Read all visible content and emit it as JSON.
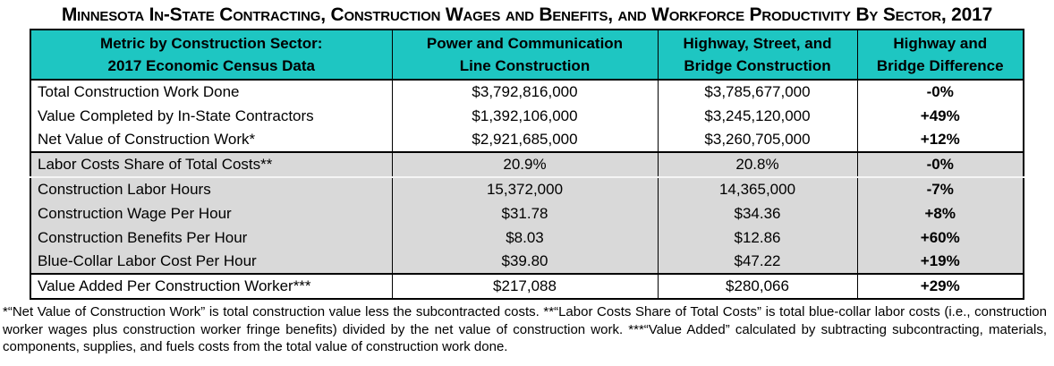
{
  "title": "Minnesota In-State Contracting, Construction Wages and Benefits, and Workforce Productivity By Sector, 2017",
  "colors": {
    "header_bg": "#1EC6C2",
    "row_shaded": "#D9D9D9",
    "border": "#000000",
    "text": "#000000",
    "thin_separator": "#F5F5F5"
  },
  "table": {
    "columns": [
      {
        "line1": "Metric by Construction Sector:",
        "line2": "2017 Economic Census Data"
      },
      {
        "line1": "Power and Communication",
        "line2": "Line Construction"
      },
      {
        "line1": "Highway, Street, and",
        "line2": "Bridge Construction"
      },
      {
        "line1": "Highway and",
        "line2": "Bridge Difference"
      }
    ],
    "rows": [
      {
        "metric": "Total Construction Work Done",
        "power_line": "$3,792,816,000",
        "highway_bridge": "$3,785,677,000",
        "difference": "-0%"
      },
      {
        "metric": "Value Completed by In-State Contractors",
        "power_line": "$1,392,106,000",
        "highway_bridge": "$3,245,120,000",
        "difference": "+49%"
      },
      {
        "metric": "Net Value of Construction Work*",
        "power_line": "$2,921,685,000",
        "highway_bridge": "$3,260,705,000",
        "difference": "+12%"
      },
      {
        "metric": "Labor Costs Share of Total Costs**",
        "power_line": "20.9%",
        "highway_bridge": "20.8%",
        "difference": "-0%"
      },
      {
        "metric": "Construction Labor Hours",
        "power_line": "15,372,000",
        "highway_bridge": "14,365,000",
        "difference": "-7%"
      },
      {
        "metric": "Construction Wage Per Hour",
        "power_line": "$31.78",
        "highway_bridge": "$34.36",
        "difference": "+8%"
      },
      {
        "metric": "Construction Benefits Per Hour",
        "power_line": "$8.03",
        "highway_bridge": "$12.86",
        "difference": "+60%"
      },
      {
        "metric": "Blue-Collar Labor Cost Per Hour",
        "power_line": "$39.80",
        "highway_bridge": "$47.22",
        "difference": "+19%"
      },
      {
        "metric": "Value Added Per Construction Worker***",
        "power_line": "$217,088",
        "highway_bridge": "$280,066",
        "difference": "+29%"
      }
    ]
  },
  "footnote": "*“Net Value of Construction Work” is total construction value less the subcontracted costs. **“Labor Costs Share of Total Costs” is total blue-collar labor costs (i.e., construction worker wages plus construction worker fringe benefits) divided by the net value of construction work. ***“Value Added” calculated by subtracting subcontracting, materials, components, supplies, and fuels costs from the total value of construction work done."
}
